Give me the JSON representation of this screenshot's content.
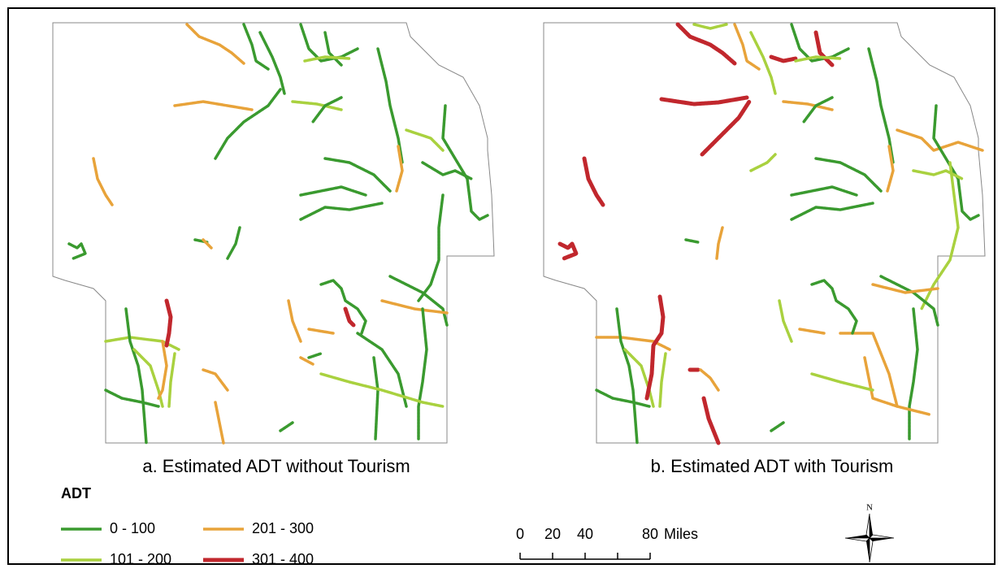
{
  "captions": {
    "a": "a. Estimated ADT without Tourism",
    "b": "b. Estimated ADT with Tourism"
  },
  "legend": {
    "title": "ADT",
    "items": [
      {
        "label": "0 - 100",
        "color": "#3a9a2f"
      },
      {
        "label": "201 - 300",
        "color": "#e8a33a"
      },
      {
        "label": "101 - 200",
        "color": "#a9d13f"
      },
      {
        "label": "301 - 400",
        "color": "#c1272d"
      }
    ]
  },
  "scale_bar": {
    "ticks": [
      0,
      20,
      40,
      80
    ],
    "unit": "Miles"
  },
  "north": "N"
}
